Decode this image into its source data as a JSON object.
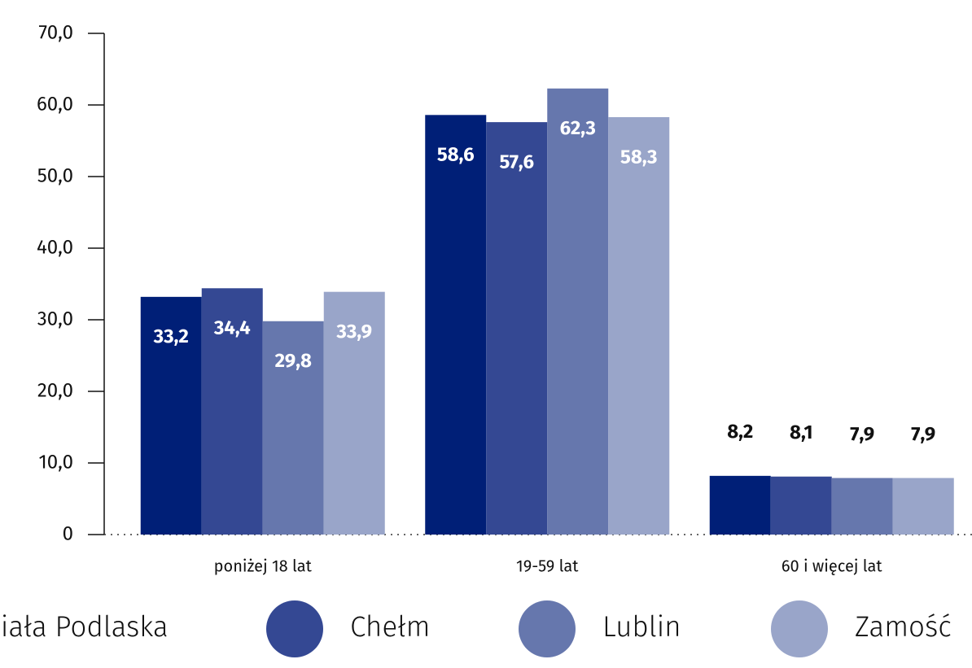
{
  "chart_data": {
    "type": "bar",
    "categories": [
      "poniżej 18 lat",
      "19-59 lat",
      "60 i więcej lat"
    ],
    "series": [
      {
        "name": "Biała Podlaska",
        "color": "#001f77",
        "values": [
          33.2,
          58.6,
          8.2
        ],
        "value_labels": [
          "33,2",
          "58,6",
          "8,2"
        ]
      },
      {
        "name": "Chełm",
        "color": "#344893",
        "values": [
          34.4,
          57.6,
          8.1
        ],
        "value_labels": [
          "34,4",
          "57,6",
          "8,1"
        ]
      },
      {
        "name": "Lublin",
        "color": "#6677ad",
        "values": [
          29.8,
          62.3,
          7.9
        ],
        "value_labels": [
          "29,8",
          "62,3",
          "7,9"
        ]
      },
      {
        "name": "Zamość",
        "color": "#99a5c9",
        "values": [
          33.9,
          58.3,
          7.9
        ],
        "value_labels": [
          "33,9",
          "58,3",
          "7,9"
        ]
      }
    ],
    "ylim": [
      0,
      70
    ],
    "yticks": [
      0,
      {
        "value": 10,
        "label": "10,0"
      },
      {
        "value": 20,
        "label": "20,0"
      },
      {
        "value": 30,
        "label": "30,0"
      },
      {
        "value": 40,
        "label": "40,0"
      },
      {
        "value": 50,
        "label": "50,0"
      },
      {
        "value": 60,
        "label": "60,0"
      },
      {
        "value": 70,
        "label": "70,0"
      }
    ],
    "legend": "bottom"
  }
}
